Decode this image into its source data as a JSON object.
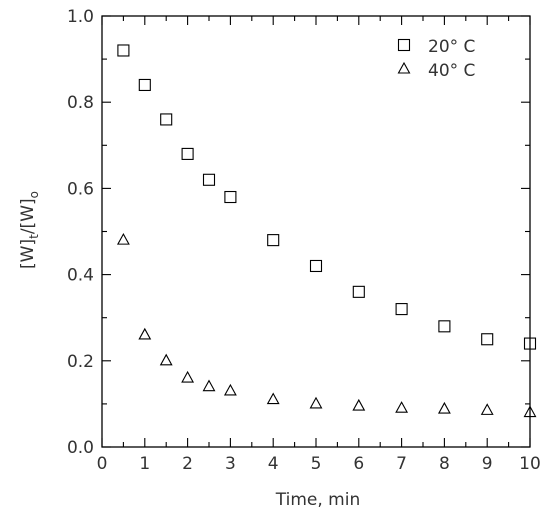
{
  "chart_data": {
    "type": "scatter",
    "xlabel": "Time, min",
    "ylabel": {
      "base": "[W]",
      "sub1": "t",
      "mid": "/[W]",
      "sub2": "o"
    },
    "xlim": [
      0,
      10
    ],
    "ylim": [
      0,
      1.0
    ],
    "x_ticks": [
      "0",
      "1",
      "2",
      "3",
      "4",
      "5",
      "6",
      "7",
      "8",
      "9",
      "10"
    ],
    "y_ticks": [
      "0.0",
      "0.2",
      "0.4",
      "0.6",
      "0.8",
      "1.0"
    ],
    "grid": false,
    "legend_position": "top-right",
    "series": [
      {
        "name": "20° C",
        "marker": "square",
        "x": [
          0.5,
          1,
          1.5,
          2,
          2.5,
          3,
          4,
          5,
          6,
          7,
          8,
          9,
          10
        ],
        "y": [
          0.92,
          0.84,
          0.76,
          0.68,
          0.62,
          0.58,
          0.48,
          0.42,
          0.36,
          0.32,
          0.28,
          0.25,
          0.24
        ]
      },
      {
        "name": "40° C",
        "marker": "triangle",
        "x": [
          0.5,
          1,
          1.5,
          2,
          2.5,
          3,
          4,
          5,
          6,
          7,
          8,
          9,
          10
        ],
        "y": [
          0.48,
          0.26,
          0.2,
          0.16,
          0.14,
          0.13,
          0.11,
          0.1,
          0.095,
          0.09,
          0.088,
          0.085,
          0.08
        ]
      }
    ]
  }
}
